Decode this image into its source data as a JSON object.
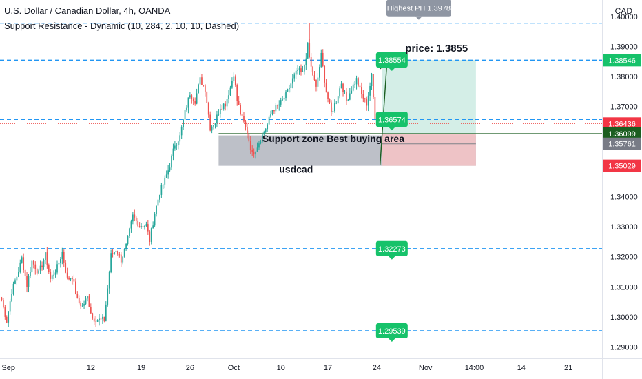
{
  "header": {
    "symbol_line": "U.S. Dollar / Canadian Dollar, 4h, OANDA",
    "indicator_line": "Support Resistance - Dynamic (10, 284, 2, 10, 10, Dashed)",
    "currency": "CAD"
  },
  "colors": {
    "up": "#26a69a",
    "down": "#ef5350",
    "level_line": "#2196f3",
    "label_green": "#16c26a",
    "label_gray": "#8f96a3",
    "support_zone": "#b2b5be",
    "profit_zone": "#d2ede6",
    "loss_zone": "#f0c3c6"
  },
  "chart_data": {
    "type": "candlestick",
    "symbol": "U.S. Dollar / Canadian Dollar",
    "timeframe": "4h",
    "y_axis": {
      "range": [
        1.2862,
        1.4055
      ],
      "ticks": [
        "1.40000",
        "1.39000",
        "1.38000",
        "1.37000",
        "1.36000",
        "1.35000",
        "1.34000",
        "1.33000",
        "1.32000",
        "1.31000",
        "1.30000",
        "1.29000"
      ],
      "tick_values": [
        1.4,
        1.39,
        1.38,
        1.37,
        1.36,
        1.35,
        1.34,
        1.33,
        1.32,
        1.31,
        1.3,
        1.29
      ]
    },
    "x_axis": {
      "ticks": [
        {
          "label": "Sep",
          "bar": 4
        },
        {
          "label": "12",
          "bar": 53
        },
        {
          "label": "19",
          "bar": 83
        },
        {
          "label": "26",
          "bar": 112
        },
        {
          "label": "Oct",
          "bar": 138
        },
        {
          "label": "10",
          "bar": 166
        },
        {
          "label": "17",
          "bar": 194
        },
        {
          "label": "24",
          "bar": 223
        },
        {
          "label": "Nov",
          "bar": 252
        },
        {
          "label": "14:00",
          "bar": 281
        },
        {
          "label": "14",
          "bar": 309
        },
        {
          "label": "21",
          "bar": 337
        }
      ],
      "total_bars": 357
    },
    "price_path": [
      [
        0,
        1.3055
      ],
      [
        3,
        1.2985
      ],
      [
        6,
        1.3085
      ],
      [
        9,
        1.3135
      ],
      [
        12,
        1.3195
      ],
      [
        15,
        1.3105
      ],
      [
        18,
        1.3185
      ],
      [
        22,
        1.3145
      ],
      [
        26,
        1.3205
      ],
      [
        29,
        1.3125
      ],
      [
        33,
        1.3165
      ],
      [
        36,
        1.3215
      ],
      [
        39,
        1.3125
      ],
      [
        42,
        1.3135
      ],
      [
        45,
        1.3055
      ],
      [
        48,
        1.3035
      ],
      [
        51,
        1.3065
      ],
      [
        54,
        1.2995
      ],
      [
        58,
        1.299
      ],
      [
        61,
        1.299
      ],
      [
        63,
        1.3095
      ],
      [
        65,
        1.3205
      ],
      [
        68,
        1.3225
      ],
      [
        71,
        1.319
      ],
      [
        74,
        1.3235
      ],
      [
        78,
        1.3335
      ],
      [
        82,
        1.3305
      ],
      [
        86,
        1.3305
      ],
      [
        88,
        1.3255
      ],
      [
        91,
        1.3345
      ],
      [
        94,
        1.3415
      ],
      [
        97,
        1.3455
      ],
      [
        100,
        1.3505
      ],
      [
        103,
        1.3575
      ],
      [
        106,
        1.36
      ],
      [
        109,
        1.368
      ],
      [
        112,
        1.3745
      ],
      [
        115,
        1.372
      ],
      [
        118,
        1.379
      ],
      [
        121,
        1.376
      ],
      [
        124,
        1.363
      ],
      [
        127,
        1.365
      ],
      [
        130,
        1.37
      ],
      [
        133,
        1.371
      ],
      [
        136,
        1.3765
      ],
      [
        138,
        1.381
      ],
      [
        140,
        1.372
      ],
      [
        143,
        1.366
      ],
      [
        146,
        1.3615
      ],
      [
        149,
        1.354
      ],
      [
        152,
        1.357
      ],
      [
        155,
        1.3605
      ],
      [
        158,
        1.364
      ],
      [
        161,
        1.369
      ],
      [
        164,
        1.37
      ],
      [
        167,
        1.372
      ],
      [
        170,
        1.375
      ],
      [
        173,
        1.379
      ],
      [
        176,
        1.382
      ],
      [
        179,
        1.381
      ],
      [
        182,
        1.39
      ],
      [
        184,
        1.383
      ],
      [
        187,
        1.376
      ],
      [
        190,
        1.387
      ],
      [
        193,
        1.375
      ],
      [
        196,
        1.368
      ],
      [
        199,
        1.372
      ],
      [
        202,
        1.378
      ],
      [
        205,
        1.372
      ],
      [
        208,
        1.376
      ],
      [
        211,
        1.379
      ],
      [
        214,
        1.374
      ],
      [
        217,
        1.371
      ],
      [
        220,
        1.38
      ],
      [
        222,
        1.366
      ]
    ],
    "levels": [
      {
        "price": 1.39777,
        "label": "Highest PH 1.3978",
        "style": "dashed"
      },
      {
        "price": 1.38546,
        "axis_label": "1.38546",
        "style": "dashed"
      },
      {
        "price": 1.36574,
        "style": "dashed"
      },
      {
        "price": 1.32273,
        "style": "dashed"
      },
      {
        "price": 1.29539,
        "style": "dashed"
      }
    ],
    "price_labels": [
      "1.38554",
      "1.36574",
      "1.32273",
      "1.29539"
    ],
    "axis_labels": [
      {
        "price": 1.38546,
        "text": "1.38546",
        "color": "green"
      },
      {
        "price": 1.36436,
        "text": "1.36436",
        "color": "red"
      },
      {
        "price": 1.36099,
        "text": "1.36099",
        "color": "darkgreen"
      },
      {
        "price": 1.35761,
        "text": "1.35761",
        "color": "gray"
      },
      {
        "price": 1.35029,
        "text": "1.35029",
        "color": "red"
      }
    ],
    "current_price": 1.36436,
    "entry_price": 1.36099,
    "support_zone": {
      "top": 1.3604,
      "bottom": 1.35029,
      "label": "Support zone Best buying area"
    },
    "position": {
      "target": 1.38554,
      "entry": 1.36099,
      "stop": 1.35029
    },
    "annotations": [
      "price: 1.3855",
      "usdcad"
    ]
  }
}
